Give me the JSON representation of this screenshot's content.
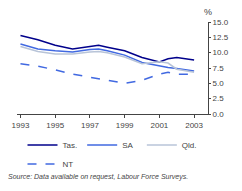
{
  "chart_data": {
    "type": "line",
    "ylabel": "%",
    "annotations": [
      "Source: Data available on request, Labour Force Surveys."
    ],
    "xlim": [
      1992.8,
      2003.8
    ],
    "xticks": [
      1993,
      1995,
      1997,
      1999,
      2001,
      2003
    ],
    "ylim": [
      0,
      15.0
    ],
    "yticks": [
      {
        "value": 0.0,
        "label": "0.0"
      },
      2.5,
      {
        "value": 5.0,
        "label": "5.0"
      },
      7.5,
      {
        "value": 10.0,
        "label": "10.0"
      },
      12.5,
      {
        "value": 15.0,
        "label": "15.0"
      }
    ],
    "grid": false,
    "legend": "bottom",
    "series": [
      {
        "name": "Tas.",
        "color": "#00008B",
        "line_style": "solid",
        "x": [
          1993,
          1994,
          1995,
          1996,
          1997,
          1997.5,
          1998,
          1999,
          2000,
          2001,
          2001.5,
          2002,
          2003
        ],
        "values": [
          12.8,
          12.1,
          11.2,
          10.6,
          11.0,
          11.2,
          10.9,
          10.3,
          9.2,
          8.5,
          9.0,
          9.2,
          8.8
        ]
      },
      {
        "name": "SA",
        "color": "#4169E1",
        "line_style": "solid",
        "x": [
          1993,
          1994,
          1995,
          1996,
          1997,
          1997.5,
          1998,
          1999,
          2000,
          2001,
          2001.5,
          2002,
          2003
        ],
        "values": [
          11.4,
          10.6,
          10.3,
          10.1,
          10.5,
          10.6,
          10.3,
          9.6,
          8.4,
          7.8,
          7.6,
          7.4,
          7.0
        ]
      },
      {
        "name": "Qld.",
        "color": "#b8c4d8",
        "line_style": "solid",
        "x": [
          1993,
          1994,
          1995,
          1996,
          1997,
          1997.5,
          1998,
          1999,
          2000,
          2001,
          2001.5,
          2002,
          2003
        ],
        "values": [
          11.0,
          10.2,
          9.8,
          9.8,
          10.1,
          10.2,
          10.0,
          9.3,
          8.2,
          8.5,
          8.3,
          7.3,
          6.8
        ]
      },
      {
        "name": "NT",
        "color": "#4169E1",
        "line_style": "dashed",
        "x": [
          1993,
          1994,
          1995,
          1996,
          1997,
          1998,
          1999,
          2000,
          2001,
          2001.5,
          2002,
          2003
        ],
        "values": [
          8.2,
          7.8,
          7.2,
          6.5,
          6.0,
          5.5,
          5.0,
          5.5,
          6.5,
          6.8,
          6.5,
          6.5
        ]
      }
    ]
  }
}
